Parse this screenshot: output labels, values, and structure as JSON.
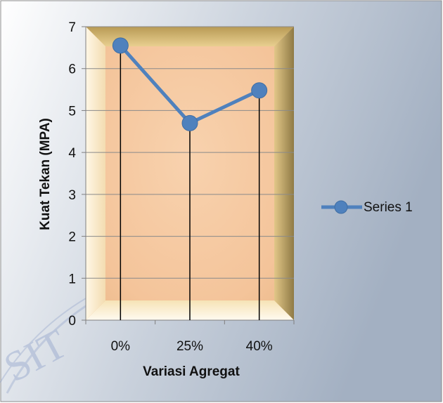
{
  "chart_data": {
    "type": "line",
    "categories": [
      "0%",
      "25%",
      "40%"
    ],
    "series": [
      {
        "name": "Series 1",
        "values": [
          6.55,
          4.7,
          5.48
        ]
      }
    ],
    "title": "",
    "xlabel": "Variasi Agregat",
    "ylabel": "Kuat Tekan (MPA)",
    "ylim": [
      0,
      7
    ],
    "yticks": [
      0,
      1,
      2,
      3,
      4,
      5,
      6,
      7
    ],
    "grid": true,
    "drop_lines": true,
    "legend_position": "right",
    "colors": {
      "series": "#4f81bd",
      "marker_fill": "#4f81bd",
      "plot_fill": "#f5c8a0",
      "plot_bevel": "#c8b070",
      "drop_line": "#000000",
      "chart_bg_light": "#ffffff",
      "chart_bg_dark": "#a6b3c4"
    }
  }
}
